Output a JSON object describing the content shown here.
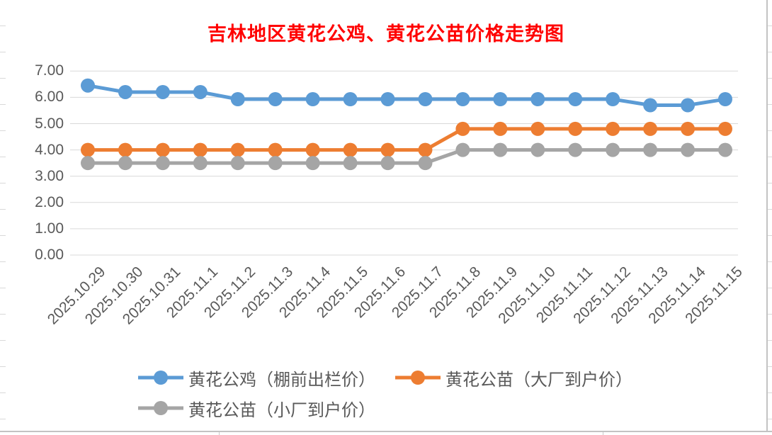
{
  "chart_data": {
    "type": "line",
    "title": "吉林地区黄花公鸡、黄花公苗价格走势图",
    "title_color": "#FF0000",
    "categories": [
      "2025.10.29",
      "2025.10.30",
      "2025.10.31",
      "2025.11.1",
      "2025.11.2",
      "2025.11.3",
      "2025.11.4",
      "2025.11.5",
      "2025.11.6",
      "2025.11.7",
      "2025.11.8",
      "2025.11.9",
      "2025.11.10",
      "2025.11.11",
      "2025.11.12",
      "2025.11.13",
      "2025.11.14",
      "2025.11.15"
    ],
    "series": [
      {
        "name": "黄花公鸡（棚前出栏价）",
        "color": "#5B9BD5",
        "values": [
          6.45,
          6.2,
          6.2,
          6.2,
          5.93,
          5.93,
          5.93,
          5.93,
          5.93,
          5.93,
          5.93,
          5.93,
          5.93,
          5.93,
          5.93,
          5.7,
          5.7,
          5.93
        ]
      },
      {
        "name": "黄花公苗（大厂到户价）",
        "color": "#ED7D31",
        "values": [
          4.0,
          4.0,
          4.0,
          4.0,
          4.0,
          4.0,
          4.0,
          4.0,
          4.0,
          4.0,
          4.8,
          4.8,
          4.8,
          4.8,
          4.8,
          4.8,
          4.8,
          4.8
        ]
      },
      {
        "name": "黄花公苗（小厂到户价）",
        "color": "#A5A5A5",
        "values": [
          3.5,
          3.5,
          3.5,
          3.5,
          3.5,
          3.5,
          3.5,
          3.5,
          3.5,
          3.5,
          4.0,
          4.0,
          4.0,
          4.0,
          4.0,
          4.0,
          4.0,
          4.0
        ]
      }
    ],
    "xlabel": "",
    "ylabel": "",
    "ylim": [
      0,
      7
    ],
    "ytick_step": 1,
    "ytick_labels": [
      "0.00",
      "1.00",
      "2.00",
      "3.00",
      "4.00",
      "5.00",
      "6.00",
      "7.00"
    ],
    "grid": true,
    "gridline_color": "#D9D9D9",
    "axis_text_color": "#595959",
    "legend_position": "bottom",
    "x_tick_rotation": -45
  }
}
